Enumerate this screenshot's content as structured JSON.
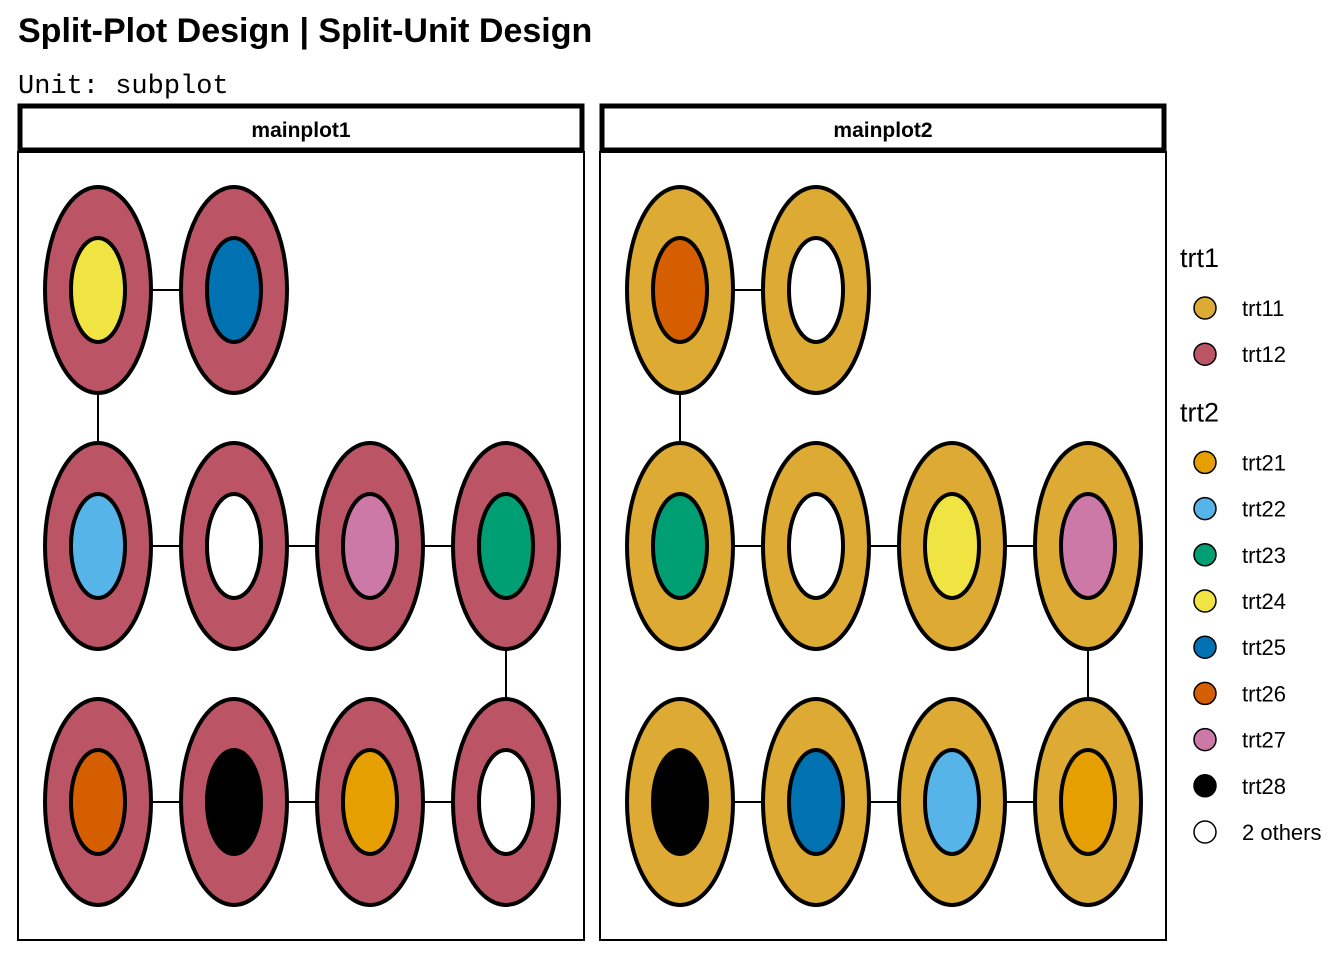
{
  "title": "Split-Plot Design | Split-Unit Design",
  "subtitle": "Unit: subplot",
  "panels": [
    {
      "label": "mainplot1",
      "trt1": "trt12",
      "rows": [
        [
          "trt24",
          "trt25"
        ],
        [
          "trt22",
          "others",
          "trt27",
          "trt23"
        ],
        [
          "trt26",
          "trt28",
          "trt21",
          "others"
        ]
      ]
    },
    {
      "label": "mainplot2",
      "trt1": "trt11",
      "rows": [
        [
          "trt26",
          "others"
        ],
        [
          "trt23",
          "others",
          "trt24",
          "trt27"
        ],
        [
          "trt28",
          "trt25",
          "trt22",
          "trt21"
        ]
      ]
    }
  ],
  "colors": {
    "trt11": "#DDAA33",
    "trt12": "#BB5566",
    "trt21": "#E69F00",
    "trt22": "#56B4E9",
    "trt23": "#009E73",
    "trt24": "#F0E442",
    "trt25": "#0072B2",
    "trt26": "#D55E00",
    "trt27": "#CC79A7",
    "trt28": "#000000",
    "others": "#FFFFFF"
  },
  "legend": {
    "groups": [
      {
        "title": "trt1",
        "items": [
          {
            "key": "trt11",
            "label": "trt11"
          },
          {
            "key": "trt12",
            "label": "trt12"
          }
        ]
      },
      {
        "title": "trt2",
        "items": [
          {
            "key": "trt21",
            "label": "trt21"
          },
          {
            "key": "trt22",
            "label": "trt22"
          },
          {
            "key": "trt23",
            "label": "trt23"
          },
          {
            "key": "trt24",
            "label": "trt24"
          },
          {
            "key": "trt25",
            "label": "trt25"
          },
          {
            "key": "trt26",
            "label": "trt26"
          },
          {
            "key": "trt27",
            "label": "trt27"
          },
          {
            "key": "trt28",
            "label": "trt28"
          },
          {
            "key": "others",
            "label": "2 others"
          }
        ]
      }
    ]
  }
}
